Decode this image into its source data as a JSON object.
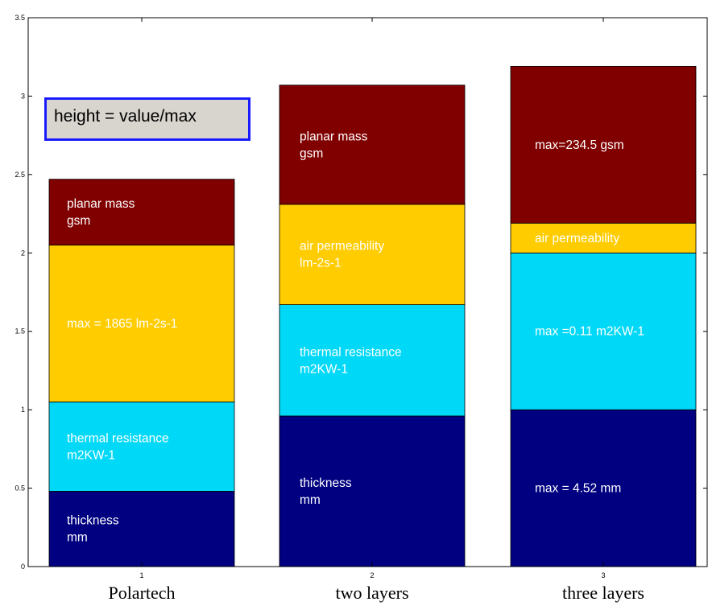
{
  "chart_data": {
    "type": "bar",
    "stacked": true,
    "categories": [
      "1",
      "2",
      "3"
    ],
    "category_labels": [
      "Polartech",
      "two layers",
      "three layers"
    ],
    "ylim": [
      0,
      3.5
    ],
    "yticks": [
      "0",
      "0.5",
      "1",
      "1.5",
      "2",
      "2.5",
      "3",
      "3.5"
    ],
    "ytick_values": [
      0,
      0.5,
      1,
      1.5,
      2,
      2.5,
      3,
      3.5
    ],
    "series": [
      {
        "key": "thickness",
        "color": "#000080",
        "values": [
          0.48,
          0.96,
          1.0
        ]
      },
      {
        "key": "thermal",
        "color": "#00d8f8",
        "values": [
          0.57,
          0.71,
          1.0
        ]
      },
      {
        "key": "air",
        "color": "#ffcc00",
        "values": [
          1.0,
          0.64,
          0.19
        ]
      },
      {
        "key": "mass",
        "color": "#800000",
        "values": [
          0.42,
          0.76,
          1.0
        ]
      }
    ],
    "segment_labels": [
      [
        [
          "thickness",
          "mm"
        ],
        [
          "thermal resistance",
          "m2KW-1"
        ],
        [
          "max = 1865 lm-2s-1"
        ],
        [
          "planar mass",
          "gsm"
        ]
      ],
      [
        [
          "thickness",
          "mm"
        ],
        [
          "thermal resistance",
          "m2KW-1"
        ],
        [
          "air permeability",
          "lm-2s-1"
        ],
        [
          "planar mass",
          "gsm"
        ]
      ],
      [
        [
          "max = 4.52 mm"
        ],
        [
          "max =0.11 m2KW-1"
        ],
        [
          "air permeability"
        ],
        [
          "max=234.5 gsm"
        ]
      ]
    ],
    "legend_box": {
      "text": "height = value/max",
      "background": "#d8d4ce",
      "border": "#1a1aff"
    }
  }
}
